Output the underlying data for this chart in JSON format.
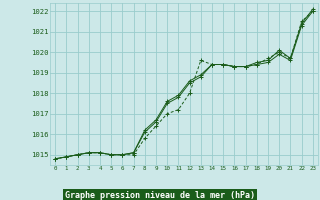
{
  "x": [
    0,
    1,
    2,
    3,
    4,
    5,
    6,
    7,
    8,
    9,
    10,
    11,
    12,
    13,
    14,
    15,
    16,
    17,
    18,
    19,
    20,
    21,
    22,
    23
  ],
  "line1": [
    1014.8,
    1014.9,
    1015.0,
    1015.1,
    1015.1,
    1015.0,
    1015.0,
    1015.0,
    1015.8,
    1016.4,
    1017.0,
    1017.2,
    1018.0,
    1019.6,
    1019.4,
    1019.4,
    1019.3,
    1019.3,
    1019.4,
    1019.7,
    1020.0,
    1019.7,
    1021.5,
    1022.0
  ],
  "line2": [
    1014.8,
    1014.9,
    1015.0,
    1015.1,
    1015.1,
    1015.0,
    1015.0,
    1015.1,
    1016.1,
    1016.6,
    1017.5,
    1017.8,
    1018.5,
    1018.8,
    1019.4,
    1019.4,
    1019.3,
    1019.3,
    1019.4,
    1019.5,
    1019.9,
    1019.6,
    1021.3,
    1022.0
  ],
  "line3": [
    1014.8,
    1014.9,
    1015.0,
    1015.1,
    1015.1,
    1015.0,
    1015.0,
    1015.1,
    1016.2,
    1016.7,
    1017.6,
    1017.9,
    1018.6,
    1018.9,
    1019.4,
    1019.4,
    1019.3,
    1019.3,
    1019.5,
    1019.6,
    1020.1,
    1019.7,
    1021.4,
    1022.1
  ],
  "bg_color": "#cce8e8",
  "grid_color": "#99cccc",
  "line_color": "#1a5c1a",
  "title": "Graphe pression niveau de la mer (hPa)",
  "title_color": "white",
  "title_bg": "#1a5c1a",
  "yticks": [
    1015,
    1016,
    1017,
    1018,
    1019,
    1020,
    1021,
    1022
  ],
  "ymin": 1014.5,
  "ymax": 1022.4,
  "xmin": -0.5,
  "xmax": 23.5
}
